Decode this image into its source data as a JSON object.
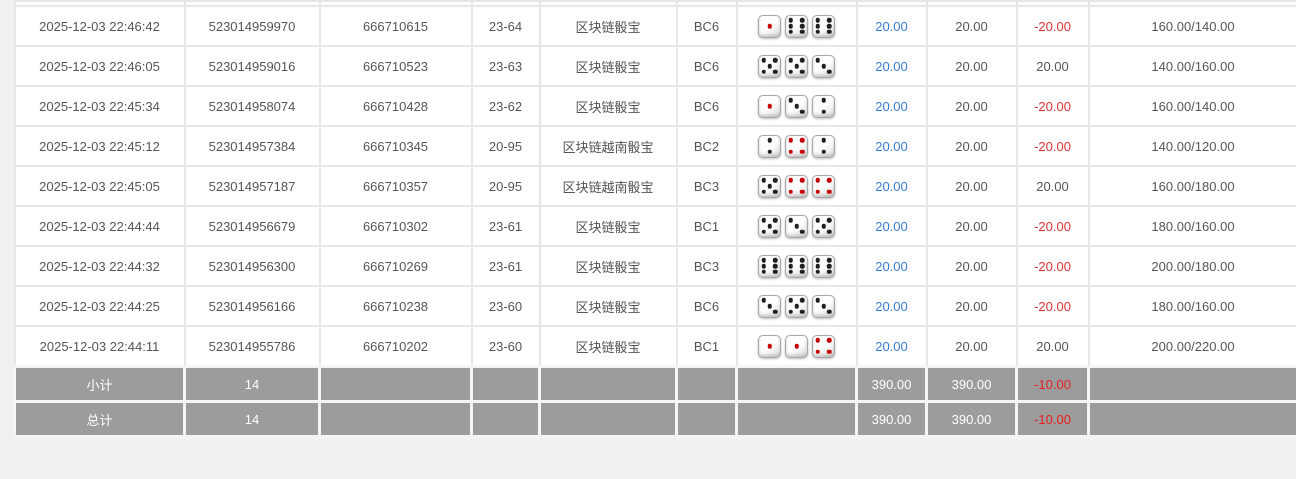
{
  "colors": {
    "link_blue": "#3a7bd5",
    "negative_red": "#e53333",
    "summary_bg": "#9c9c9c",
    "summary_text": "#ffffff",
    "grid_line": "#e7e7e7",
    "page_bg": "#f0f0f0"
  },
  "table": {
    "rows": [
      {
        "time": "2025-12-03 22:46:42",
        "bet_id": "523014959970",
        "round_id": "666710615",
        "period": "23-64",
        "game": "区块链骰宝",
        "bet_type": "BC6",
        "dice": [
          1,
          6,
          6
        ],
        "bet_amount": "20.00",
        "valid_amount": "20.00",
        "win_loss": "-20.00",
        "balance": "160.00/140.00"
      },
      {
        "time": "2025-12-03 22:46:05",
        "bet_id": "523014959016",
        "round_id": "666710523",
        "period": "23-63",
        "game": "区块链骰宝",
        "bet_type": "BC6",
        "dice": [
          5,
          5,
          3
        ],
        "bet_amount": "20.00",
        "valid_amount": "20.00",
        "win_loss": "20.00",
        "balance": "140.00/160.00"
      },
      {
        "time": "2025-12-03 22:45:34",
        "bet_id": "523014958074",
        "round_id": "666710428",
        "period": "23-62",
        "game": "区块链骰宝",
        "bet_type": "BC6",
        "dice": [
          1,
          3,
          2
        ],
        "bet_amount": "20.00",
        "valid_amount": "20.00",
        "win_loss": "-20.00",
        "balance": "160.00/140.00"
      },
      {
        "time": "2025-12-03 22:45:12",
        "bet_id": "523014957384",
        "round_id": "666710345",
        "period": "20-95",
        "game": "区块链越南骰宝",
        "bet_type": "BC2",
        "dice": [
          2,
          4,
          2
        ],
        "bet_amount": "20.00",
        "valid_amount": "20.00",
        "win_loss": "-20.00",
        "balance": "140.00/120.00"
      },
      {
        "time": "2025-12-03 22:45:05",
        "bet_id": "523014957187",
        "round_id": "666710357",
        "period": "20-95",
        "game": "区块链越南骰宝",
        "bet_type": "BC3",
        "dice": [
          5,
          4,
          4
        ],
        "bet_amount": "20.00",
        "valid_amount": "20.00",
        "win_loss": "20.00",
        "balance": "160.00/180.00"
      },
      {
        "time": "2025-12-03 22:44:44",
        "bet_id": "523014956679",
        "round_id": "666710302",
        "period": "23-61",
        "game": "区块链骰宝",
        "bet_type": "BC1",
        "dice": [
          5,
          3,
          5
        ],
        "bet_amount": "20.00",
        "valid_amount": "20.00",
        "win_loss": "-20.00",
        "balance": "180.00/160.00"
      },
      {
        "time": "2025-12-03 22:44:32",
        "bet_id": "523014956300",
        "round_id": "666710269",
        "period": "23-61",
        "game": "区块链骰宝",
        "bet_type": "BC3",
        "dice": [
          6,
          6,
          6
        ],
        "bet_amount": "20.00",
        "valid_amount": "20.00",
        "win_loss": "-20.00",
        "balance": "200.00/180.00"
      },
      {
        "time": "2025-12-03 22:44:25",
        "bet_id": "523014956166",
        "round_id": "666710238",
        "period": "23-60",
        "game": "区块链骰宝",
        "bet_type": "BC6",
        "dice": [
          3,
          5,
          3
        ],
        "bet_amount": "20.00",
        "valid_amount": "20.00",
        "win_loss": "-20.00",
        "balance": "180.00/160.00"
      },
      {
        "time": "2025-12-03 22:44:11",
        "bet_id": "523014955786",
        "round_id": "666710202",
        "period": "23-60",
        "game": "区块链骰宝",
        "bet_type": "BC1",
        "dice": [
          1,
          1,
          4
        ],
        "bet_amount": "20.00",
        "valid_amount": "20.00",
        "win_loss": "20.00",
        "balance": "200.00/220.00"
      }
    ],
    "subtotal": {
      "label": "小计",
      "count": "14",
      "bet_total": "390.00",
      "valid_total": "390.00",
      "win_loss_total": "-10.00"
    },
    "total": {
      "label": "总计",
      "count": "14",
      "bet_total": "390.00",
      "valid_total": "390.00",
      "win_loss_total": "-10.00"
    }
  }
}
